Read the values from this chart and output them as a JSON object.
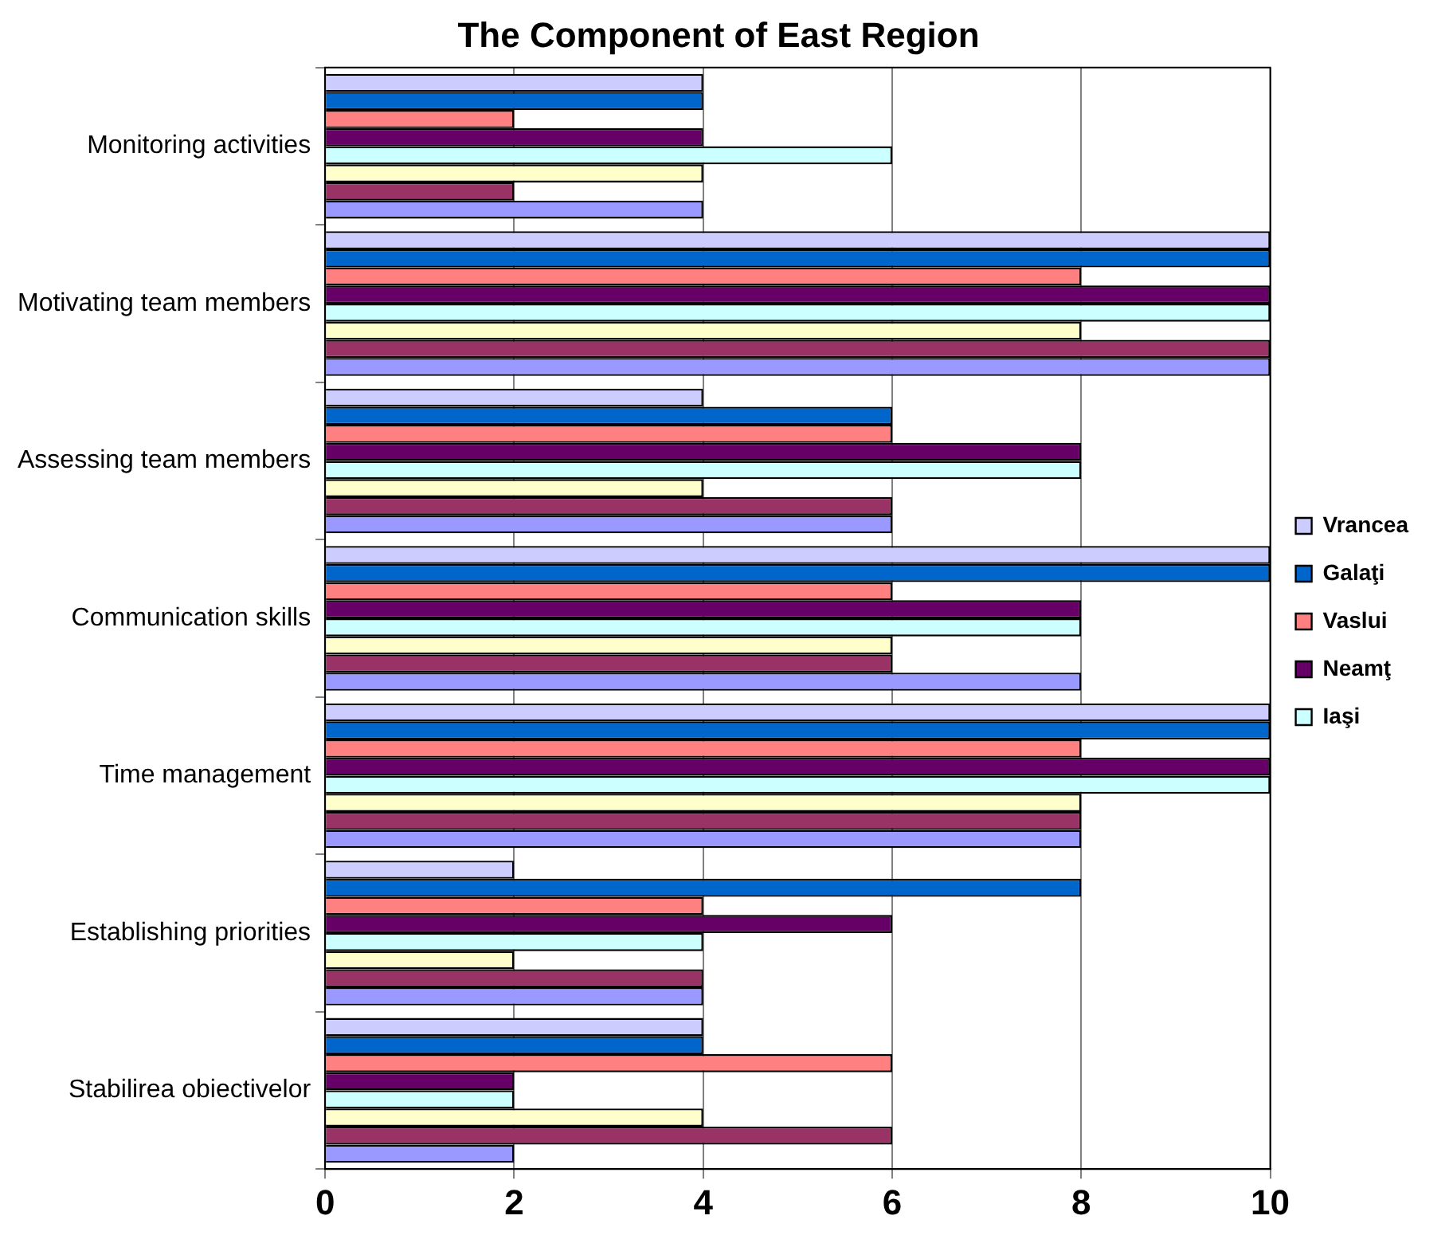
{
  "chart_data": {
    "type": "bar",
    "orientation": "horizontal",
    "title": "The Component of East Region",
    "categories": [
      "Monitoring activities",
      "Motivating team members",
      "Assessing team members",
      "Communication skills",
      "Time management",
      "Establishing priorities",
      "Stabilirea obiectivelor"
    ],
    "series": [
      {
        "name": "Vrancea",
        "color": "#ccccff",
        "values": [
          4,
          10,
          4,
          10,
          10,
          2,
          4
        ]
      },
      {
        "name": "Galaţi",
        "color": "#0066cc",
        "values": [
          4,
          10,
          6,
          10,
          10,
          8,
          4
        ]
      },
      {
        "name": "Vaslui",
        "color": "#ff8080",
        "values": [
          2,
          8,
          6,
          6,
          8,
          4,
          6
        ]
      },
      {
        "name": "Neamţ",
        "color": "#660066",
        "values": [
          4,
          10,
          8,
          8,
          10,
          6,
          2
        ]
      },
      {
        "name": "Iaşi",
        "color": "#ccffff",
        "values": [
          6,
          10,
          8,
          8,
          10,
          4,
          2
        ]
      },
      {
        "color": "#ffffcc",
        "values": [
          4,
          8,
          4,
          6,
          8,
          2,
          4
        ]
      },
      {
        "color": "#993366",
        "values": [
          2,
          10,
          6,
          6,
          8,
          4,
          6
        ]
      },
      {
        "color": "#9999ff",
        "values": [
          4,
          10,
          6,
          8,
          8,
          4,
          2
        ]
      }
    ],
    "xlim": [
      0,
      10
    ],
    "xticks": [
      0,
      2,
      4,
      6,
      8,
      10
    ],
    "grid": "x",
    "legend": "right"
  }
}
